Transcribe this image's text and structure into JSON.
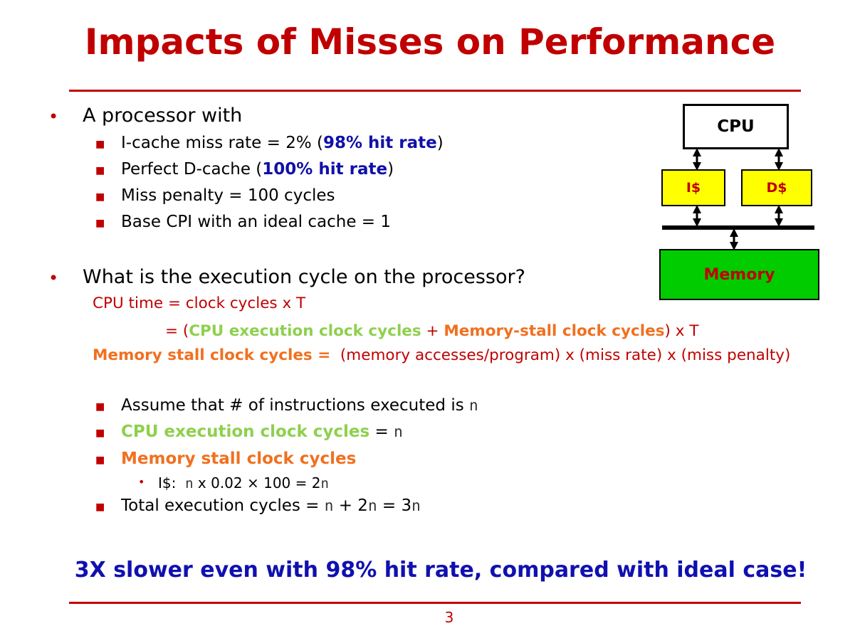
{
  "title": "Impacts of Misses on Performance",
  "bullet1": {
    "text": "A processor with",
    "items": {
      "icache_pre": "I-cache miss rate = 2% (",
      "icache_hl": "98% hit rate",
      "icache_post": ")",
      "dcache_pre": "Perfect D-cache (",
      "dcache_hl": "100% hit rate",
      "dcache_post": ")",
      "penalty": "Miss penalty = 100 cycles",
      "cpi": "Base CPI with an ideal cache = 1"
    }
  },
  "bullet2": {
    "text": "What is the execution cycle on the processor?",
    "eq1": "CPU time = clock cycles x T",
    "eq2": {
      "pre": "= (",
      "green": "CPU execution clock cycles",
      "plus": " + ",
      "orange": "Memory-stall clock cycles",
      "post": ") x T"
    },
    "eq3": {
      "orange": "Memory stall clock cycles =",
      "rest": "(memory accesses/program) x (miss rate) x (miss penalty)"
    }
  },
  "steps": {
    "assume_pre": "Assume that # of instructions executed is",
    "n": "n",
    "cpu_exec": "CPU execution clock cycles",
    "cpu_exec_eq": "=",
    "mem_stall": "Memory stall clock cycles",
    "sub_label": "I$:",
    "sub_mid": "x 0.02 × 100 = 2",
    "total_pre": "Total execution cycles =",
    "total_mid1": "+ 2",
    "total_mid2": "= 3"
  },
  "conclusion": "3X slower even with 98% hit rate, compared with ideal case!",
  "page_number": "3",
  "diagram": {
    "cpu": "CPU",
    "icache": "I$",
    "dcache": "D$",
    "memory": "Memory"
  },
  "colors": {
    "title": "#c00000",
    "highlight_blue": "#1010a8",
    "green": "#8ed04e",
    "orange": "#f07020",
    "cache_fill": "#ffff00",
    "memory_fill": "#00cc00"
  }
}
